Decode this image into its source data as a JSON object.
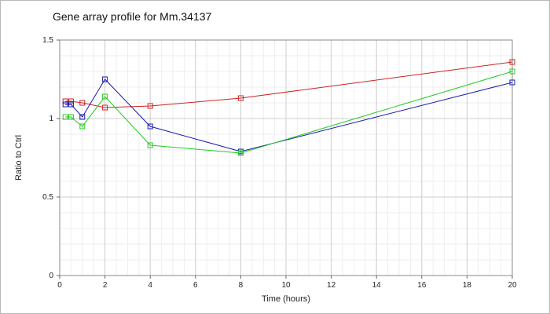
{
  "chart_data": {
    "type": "line",
    "title": "Gene array profile for Mm.34137",
    "xlabel": "Time (hours)",
    "ylabel": "Ratio to Ctrl",
    "xlim": [
      0,
      20
    ],
    "ylim": [
      0,
      1.5
    ],
    "xticks": [
      0,
      2,
      4,
      6,
      8,
      10,
      12,
      14,
      16,
      18,
      20
    ],
    "yticks": [
      0,
      0.5,
      1,
      1.5
    ],
    "ytick_labels": [
      "0",
      "0.5",
      "1",
      "1.5"
    ],
    "grid": true,
    "series": [
      {
        "color": "#cc2222",
        "x": [
          0.25,
          0.5,
          1,
          2,
          4,
          8,
          20
        ],
        "y": [
          1.11,
          1.11,
          1.1,
          1.07,
          1.08,
          1.13,
          1.36
        ]
      },
      {
        "color": "#1a1ab0",
        "x": [
          0.25,
          0.5,
          1,
          2,
          4,
          8,
          20
        ],
        "y": [
          1.09,
          1.09,
          1.01,
          1.25,
          0.95,
          0.79,
          1.23
        ]
      },
      {
        "color": "#22cc22",
        "x": [
          0.25,
          0.5,
          1,
          2,
          4,
          8,
          20
        ],
        "y": [
          1.01,
          1.01,
          0.95,
          1.14,
          0.83,
          0.78,
          1.3
        ]
      }
    ]
  }
}
